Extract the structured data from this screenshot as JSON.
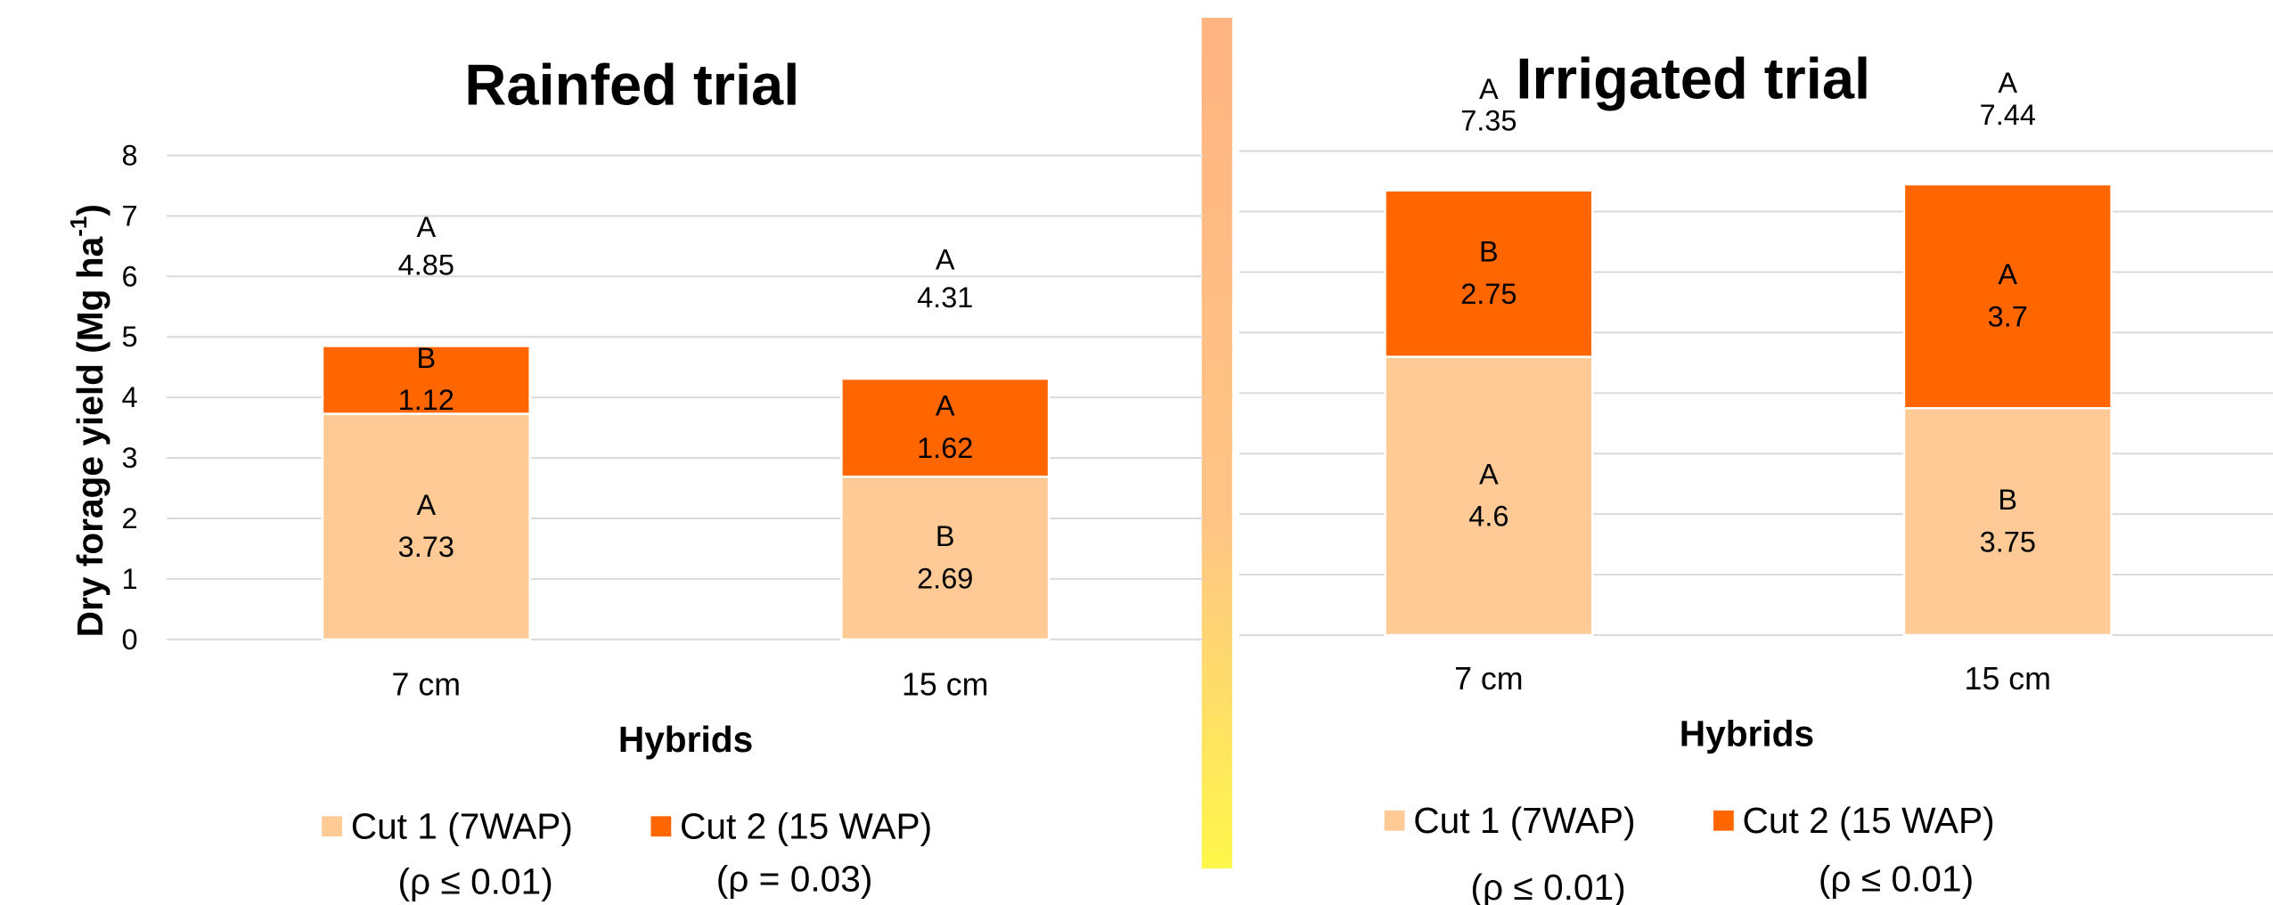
{
  "chart_data": [
    {
      "type": "stacked_bar",
      "title": "Rainfed trial",
      "xlabel": "Hybrids",
      "ylabel": "Dry forage yield (Mg ha",
      "ylabel_sup": "-1",
      "ylabel_end": ")",
      "categories": [
        "7 cm",
        "15 cm"
      ],
      "series": [
        {
          "name": "Cut 1 (7WAP)",
          "color": "#ffca96",
          "values": [
            3.73,
            2.69
          ],
          "letters": [
            "A",
            "B"
          ],
          "p_label": "(ρ  ≤ 0.01)"
        },
        {
          "name": "Cut 2 (15 WAP)",
          "color": "#ff6600",
          "values": [
            1.12,
            1.62
          ],
          "letters": [
            "B",
            "A"
          ],
          "p_label": "(ρ  = 0.03)"
        }
      ],
      "totals": [
        4.85,
        4.31
      ],
      "total_letters": [
        "A",
        "A"
      ],
      "ylim": [
        0,
        8
      ],
      "yticks": [
        0,
        1,
        2,
        3,
        4,
        5,
        6,
        7,
        8
      ],
      "tick_labels": true,
      "grid": true
    },
    {
      "type": "stacked_bar",
      "title": "Irrigated trial",
      "xlabel": "Hybrids",
      "categories": [
        "7 cm",
        "15 cm"
      ],
      "series": [
        {
          "name": "Cut 1 (7WAP)",
          "color": "#ffca96",
          "values": [
            4.6,
            3.75
          ],
          "letters": [
            "A",
            "B"
          ],
          "p_label": "(ρ  ≤ 0.01)"
        },
        {
          "name": "Cut 2 (15 WAP)",
          "color": "#ff6600",
          "values": [
            2.75,
            3.7
          ],
          "letters": [
            "B",
            "A"
          ],
          "p_label": "(ρ  ≤ 0.01)"
        }
      ],
      "totals": [
        7.35,
        7.44
      ],
      "total_letters": [
        "A",
        "A"
      ],
      "ylim": [
        0,
        8
      ],
      "yticks": [
        0,
        1,
        2,
        3,
        4,
        5,
        6,
        7,
        8
      ],
      "tick_labels": false,
      "grid": true
    }
  ]
}
